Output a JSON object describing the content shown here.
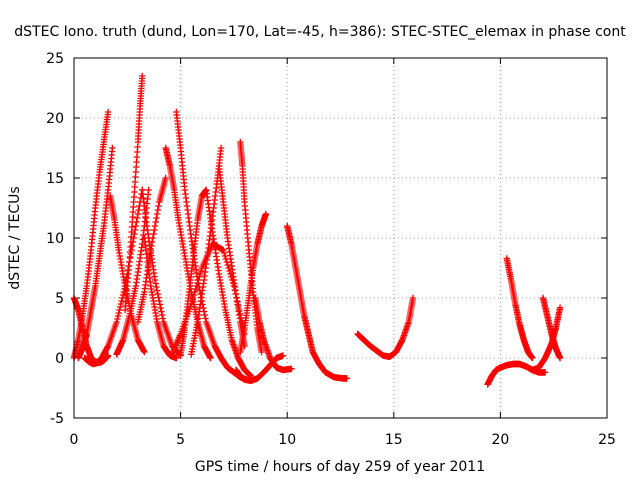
{
  "chart_data": {
    "type": "scatter",
    "title": "dSTEC Iono. truth (dund, Lon=170, Lat=-45, h=386): STEC-STEC_elemax in phase cont",
    "xlabel": "GPS time / hours of day 259 of year 2011",
    "ylabel": "dSTEC  / TECUs",
    "xlim": [
      0,
      25
    ],
    "ylim": [
      -5,
      25
    ],
    "x_ticks": [
      0,
      5,
      10,
      15,
      20,
      25
    ],
    "y_ticks": [
      -5,
      0,
      5,
      10,
      15,
      20,
      25
    ],
    "x_tick_labels": [
      "0",
      "5",
      "10",
      "15",
      "20",
      "25"
    ],
    "y_tick_labels": [
      "-5",
      "0",
      "5",
      "10",
      "15",
      "20",
      "25"
    ],
    "grid": true,
    "marker": "plus",
    "color": "#ff0000",
    "series": [
      {
        "x": [
          0.0,
          0.2,
          0.4,
          0.6,
          0.8,
          1.0,
          1.2,
          1.4,
          1.6
        ],
        "y": [
          0.0,
          1.5,
          3.5,
          6.0,
          9.0,
          12.5,
          15.5,
          18.0,
          20.5
        ]
      },
      {
        "x": [
          0.0,
          0.2,
          0.4,
          0.6,
          0.8,
          1.0,
          1.2,
          1.4,
          1.6
        ],
        "y": [
          5.0,
          4.0,
          2.5,
          1.0,
          0.0,
          -0.3,
          -0.4,
          -0.2,
          0.2
        ]
      },
      {
        "x": [
          0.2,
          0.4,
          0.6,
          0.8,
          1.0,
          1.2,
          1.4,
          1.6,
          1.8
        ],
        "y": [
          0.0,
          0.8,
          2.0,
          4.0,
          6.0,
          8.5,
          11.0,
          14.0,
          17.5
        ]
      },
      {
        "x": [
          0.5,
          0.7,
          0.9,
          1.1,
          1.3,
          1.6,
          2.0,
          2.4,
          2.8,
          3.2
        ],
        "y": [
          0.0,
          -0.3,
          -0.5,
          -0.4,
          0.0,
          1.0,
          3.0,
          6.0,
          10.0,
          14.0
        ]
      },
      {
        "x": [
          1.7,
          1.9,
          2.1,
          2.4,
          2.7,
          3.0,
          3.3
        ],
        "y": [
          13.5,
          11.5,
          9.0,
          6.0,
          3.5,
          1.5,
          0.5
        ]
      },
      {
        "x": [
          2.0,
          2.3,
          2.6,
          2.9,
          3.2,
          3.5
        ],
        "y": [
          0.3,
          1.5,
          3.5,
          6.0,
          9.5,
          14.0
        ]
      },
      {
        "x": [
          2.4,
          2.6,
          2.8,
          3.0,
          3.1,
          3.2
        ],
        "y": [
          4.0,
          8.0,
          13.0,
          18.0,
          21.0,
          23.5
        ]
      },
      {
        "x": [
          3.2,
          3.5,
          3.8,
          4.2,
          4.6,
          5.0
        ],
        "y": [
          14.0,
          10.0,
          6.5,
          3.0,
          1.0,
          0.2
        ]
      },
      {
        "x": [
          3.0,
          3.3,
          3.6,
          4.0,
          4.3
        ],
        "y": [
          3.0,
          5.5,
          9.0,
          13.0,
          15.0
        ]
      },
      {
        "x": [
          3.3,
          3.6,
          3.9,
          4.2,
          4.5,
          4.8
        ],
        "y": [
          10.0,
          6.0,
          3.0,
          1.0,
          0.2,
          0.0
        ]
      },
      {
        "x": [
          4.3,
          4.5,
          4.7,
          4.9,
          5.2,
          5.5,
          5.8,
          6.1,
          6.4
        ],
        "y": [
          17.5,
          16.0,
          14.0,
          11.5,
          8.5,
          5.5,
          3.0,
          1.0,
          0.0
        ]
      },
      {
        "x": [
          4.8,
          5.0,
          5.2,
          5.5,
          5.8,
          6.2,
          6.6
        ],
        "y": [
          20.5,
          17.5,
          14.0,
          10.0,
          6.5,
          3.0,
          1.0
        ]
      },
      {
        "x": [
          4.6,
          5.0,
          5.5,
          6.0,
          6.5,
          7.0,
          7.5,
          8.0
        ],
        "y": [
          0.3,
          2.0,
          4.5,
          7.5,
          9.5,
          9.0,
          6.0,
          2.0
        ]
      },
      {
        "x": [
          5.0,
          5.2,
          5.4,
          5.6,
          5.8,
          6.0,
          6.2
        ],
        "y": [
          0.3,
          2.5,
          5.5,
          8.5,
          11.5,
          13.5,
          14.0
        ]
      },
      {
        "x": [
          5.5,
          5.8,
          6.1,
          6.4,
          6.7,
          6.9
        ],
        "y": [
          0.3,
          3.0,
          6.5,
          10.5,
          14.5,
          17.5
        ]
      },
      {
        "x": [
          6.2,
          6.5,
          6.8,
          7.1,
          7.4,
          7.7,
          8.0,
          8.3
        ],
        "y": [
          14.0,
          10.5,
          7.0,
          4.0,
          1.5,
          0.0,
          -1.0,
          -1.5
        ]
      },
      {
        "x": [
          6.6,
          6.9,
          7.2,
          7.5,
          7.8,
          8.1
        ],
        "y": [
          1.0,
          0.0,
          -0.8,
          -1.2,
          -1.6,
          -1.8
        ]
      },
      {
        "x": [
          6.8,
          7.0,
          7.2,
          7.5,
          7.8,
          8.0
        ],
        "y": [
          16.0,
          13.0,
          10.0,
          6.5,
          3.0,
          1.0
        ]
      },
      {
        "x": [
          7.8,
          7.9,
          8.0,
          8.2,
          8.4,
          8.6,
          8.8
        ],
        "y": [
          18.0,
          16.0,
          13.0,
          9.0,
          5.5,
          2.5,
          0.5
        ]
      },
      {
        "x": [
          7.6,
          7.8,
          8.0,
          8.3,
          8.6,
          8.9,
          9.2,
          9.5,
          9.8
        ],
        "y": [
          -1.0,
          -1.5,
          -1.8,
          -1.9,
          -1.7,
          -1.2,
          -0.6,
          0.0,
          0.2
        ]
      },
      {
        "x": [
          7.8,
          8.0,
          8.2,
          8.4,
          8.6,
          8.8,
          9.0
        ],
        "y": [
          0.5,
          2.5,
          5.0,
          7.5,
          9.5,
          11.0,
          12.0
        ]
      },
      {
        "x": [
          8.5,
          8.7,
          8.9,
          9.2,
          9.5,
          9.8,
          10.2
        ],
        "y": [
          5.0,
          3.0,
          1.5,
          0.0,
          -0.8,
          -1.0,
          -0.9
        ]
      },
      {
        "x": [
          10.0,
          10.2,
          10.4,
          10.6,
          10.8,
          11.0,
          11.2,
          11.5,
          11.8,
          12.2,
          12.6,
          12.8
        ],
        "y": [
          11.0,
          9.5,
          7.5,
          5.5,
          3.5,
          2.0,
          0.5,
          -0.5,
          -1.2,
          -1.6,
          -1.7,
          -1.7
        ]
      },
      {
        "x": [
          13.3,
          13.6,
          13.9,
          14.2,
          14.5,
          14.8,
          15.1,
          15.4,
          15.7,
          15.9
        ],
        "y": [
          2.0,
          1.5,
          1.0,
          0.6,
          0.2,
          0.1,
          0.5,
          1.5,
          3.0,
          5.0
        ]
      },
      {
        "x": [
          19.4,
          19.6,
          19.8,
          20.0,
          20.3,
          20.6,
          20.9,
          21.2,
          21.5,
          21.8,
          22.1
        ],
        "y": [
          -2.2,
          -1.5,
          -1.0,
          -0.8,
          -0.6,
          -0.5,
          -0.5,
          -0.7,
          -1.0,
          -1.2,
          -1.2
        ]
      },
      {
        "x": [
          20.3,
          20.5,
          20.7,
          20.9,
          21.1,
          21.3,
          21.5
        ],
        "y": [
          8.3,
          6.5,
          4.5,
          2.8,
          1.5,
          0.5,
          0.0
        ]
      },
      {
        "x": [
          21.5,
          21.8,
          22.1,
          22.4,
          22.6,
          22.8
        ],
        "y": [
          -1.0,
          -0.8,
          0.0,
          1.2,
          2.5,
          4.2
        ]
      },
      {
        "x": [
          22.0,
          22.2,
          22.4,
          22.6,
          22.8
        ],
        "y": [
          5.0,
          3.5,
          2.0,
          0.8,
          0.0
        ]
      }
    ]
  }
}
